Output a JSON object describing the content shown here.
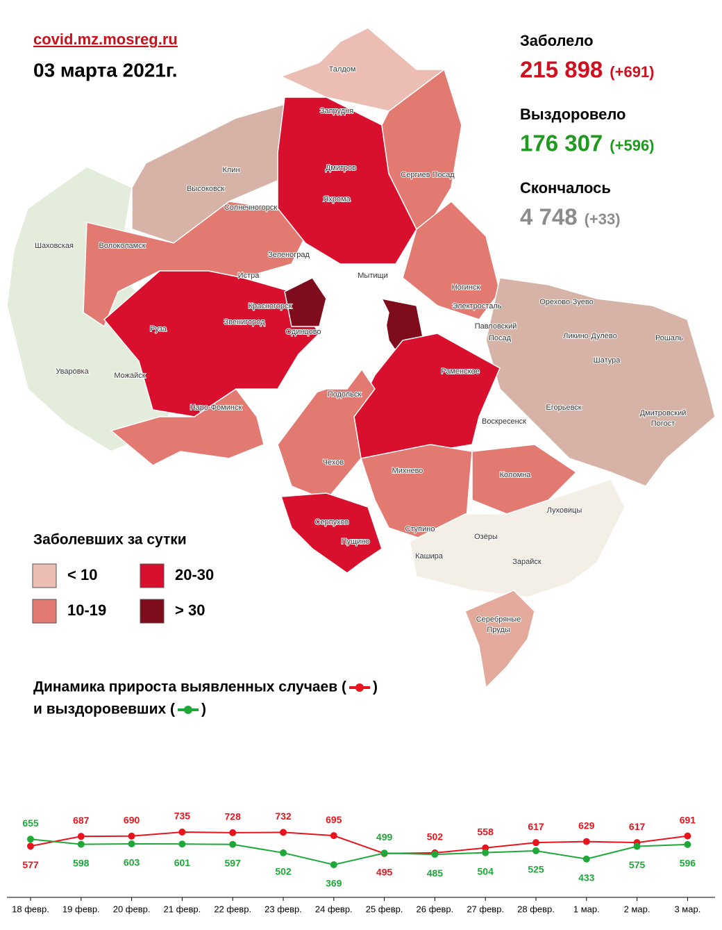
{
  "header": {
    "source": "covid.mz.mosreg.ru",
    "date": "03 марта 2021г."
  },
  "stats": [
    {
      "label": "Заболело",
      "value": "215 898",
      "delta": "(+691)",
      "color": "#d0101e"
    },
    {
      "label": "Выздоровело",
      "value": "176 307",
      "delta": "(+596)",
      "color": "#1e9a1e"
    },
    {
      "label": "Скончалось",
      "value": "4 748",
      "delta": "(+33)",
      "color": "#8c8c8c"
    }
  ],
  "legend": {
    "title": "Заболевших за сутки",
    "items": [
      {
        "label": "< 10",
        "color": "#ebbdb3"
      },
      {
        "label": "10-19",
        "color": "#e27a72"
      },
      {
        "label": "20-30",
        "color": "#d8102e"
      },
      {
        "label": "> 30",
        "color": "#7e0c1c"
      }
    ]
  },
  "map": {
    "labels": [
      "Талдом",
      "Запрудня",
      "Дмитров",
      "Яхрома",
      "Клин",
      "Высоковск",
      "Солнечногорск",
      "Сергиев Посад",
      "Шаховская",
      "Волоколамск",
      "Зеленоград",
      "Мытищи",
      "Истра",
      "Ногинск",
      "Орехово-Зуево",
      "Электросталь",
      "Красногорск",
      "Павловский",
      "Посад",
      "Звенигород",
      "Руза",
      "Одинцово",
      "Ликино-Дулёво",
      "Рошаль",
      "Шатура",
      "Уваровка",
      "Можайск",
      "Раменское",
      "Подольск",
      "Егорьевск",
      "Наро-Фоминск",
      "Воскресенск",
      "Дмитровский",
      "Погост",
      "Чехов",
      "Михнево",
      "Коломна",
      "Луховицы",
      "Серпухов",
      "Ступино",
      "Озёры",
      "Пущино",
      "Кашира",
      "Зарайск",
      "Серебряные",
      "Пруды"
    ]
  },
  "chart_data": {
    "type": "line",
    "title_parts": [
      "Динамика прироста выявленных случаев (",
      ")",
      "и выздоровевших (",
      ")"
    ],
    "categories": [
      "18 февр.",
      "19 февр.",
      "20 февр.",
      "21 февр.",
      "22 февр.",
      "23 февр.",
      "24 февр.",
      "25 февр.",
      "26 февр.",
      "27 февр.",
      "28 февр.",
      "1 мар.",
      "2 мар.",
      "3 мар."
    ],
    "series": [
      {
        "color": "#e8141e",
        "values": [
          577,
          687,
          690,
          735,
          728,
          732,
          695,
          495,
          502,
          558,
          617,
          629,
          617,
          691
        ]
      },
      {
        "color": "#1fa83a",
        "values": [
          655,
          598,
          603,
          601,
          597,
          502,
          369,
          499,
          485,
          504,
          525,
          433,
          575,
          596
        ]
      }
    ]
  }
}
